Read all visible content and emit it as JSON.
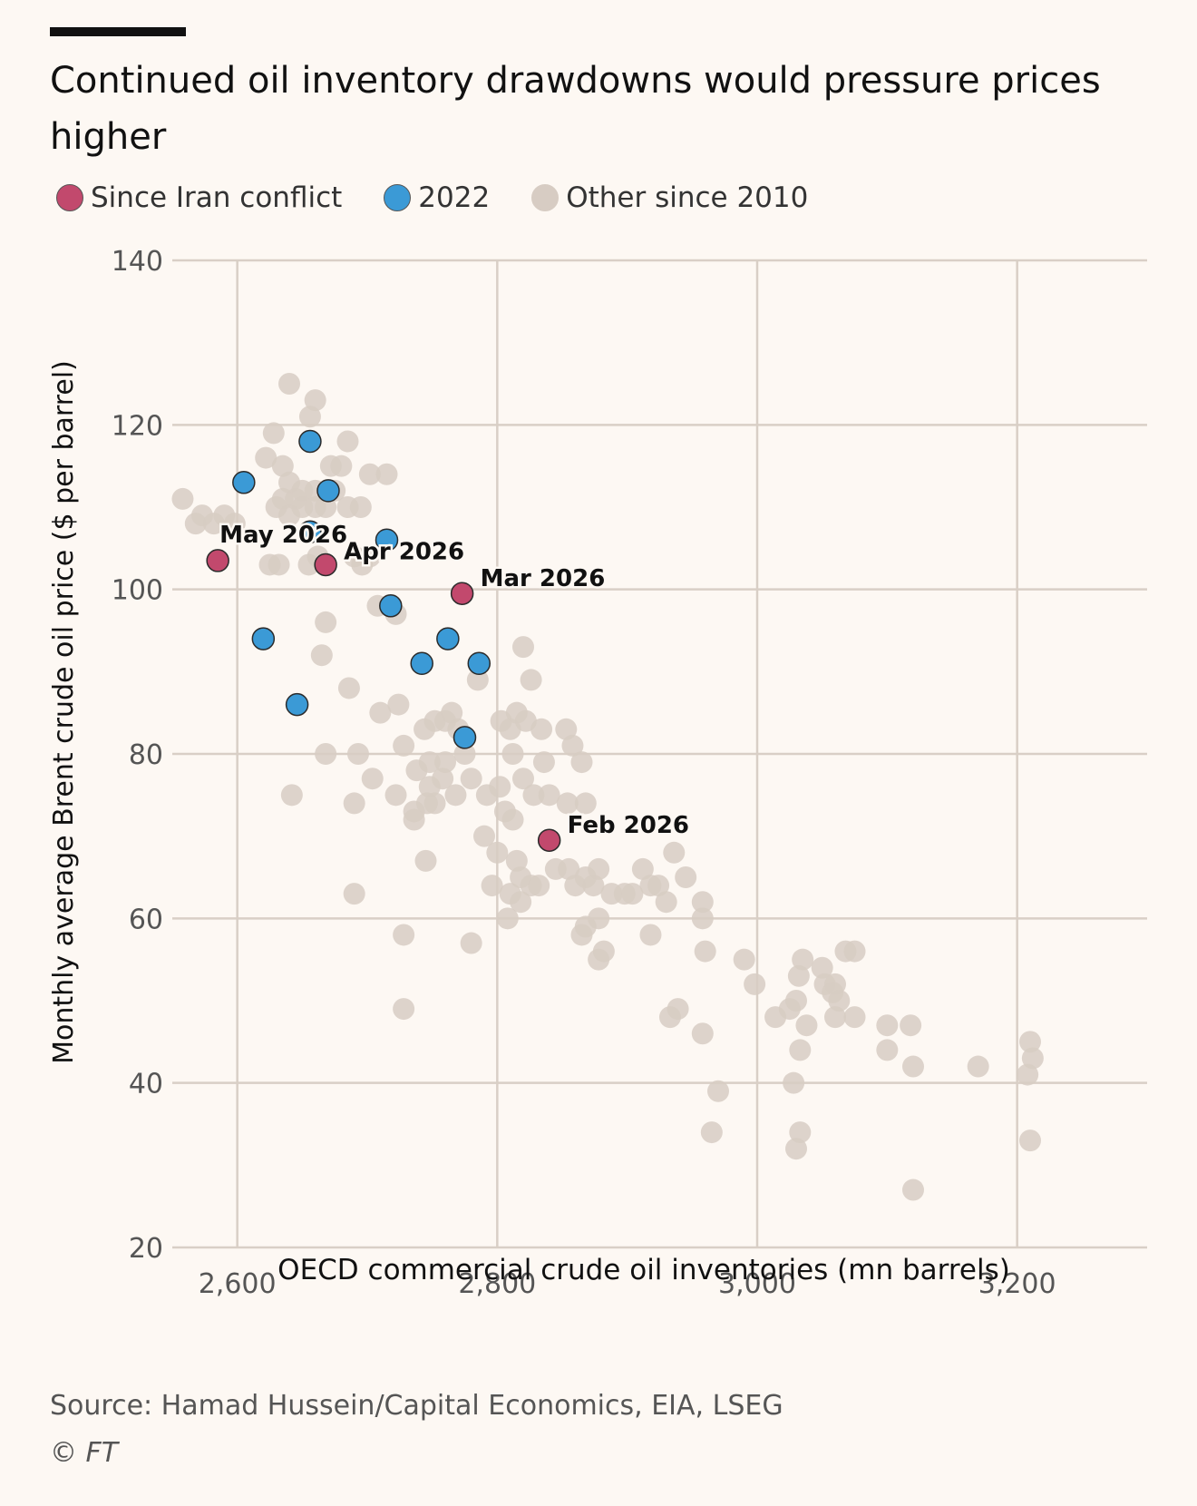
{
  "title": "Continued oil inventory drawdowns would pressure prices higher",
  "source": "Source: Hamad Hussein/Capital Economics, EIA, LSEG",
  "copyright": "© FT",
  "colors": {
    "iran": "#c2496d",
    "y2022": "#3b9ad6",
    "other": "#d7ccc3",
    "grid": "#d9cfc6",
    "background": "#fdf8f3"
  },
  "chart_data": {
    "type": "scatter",
    "title": "Continued oil inventory drawdowns would pressure prices higher",
    "xlabel": "OECD commercial crude oil inventories (mn barrels)",
    "ylabel": "Monthly average Brent crude oil price ($ per barrel)",
    "xlim": [
      2550,
      3300
    ],
    "ylim": [
      20,
      140
    ],
    "xticks": [
      2600,
      2800,
      3000,
      3200
    ],
    "xtick_labels": [
      "2,600",
      "2,800",
      "3,000",
      "3,200"
    ],
    "yticks": [
      20,
      40,
      60,
      80,
      100,
      120,
      140
    ],
    "ytick_labels": [
      "20",
      "40",
      "60",
      "80",
      "100",
      "120",
      "140"
    ],
    "grid": true,
    "legend_position": "top-left",
    "series": [
      {
        "name": "Other since 2010",
        "color": "#d7ccc3",
        "points": [
          [
            2558,
            111
          ],
          [
            2568,
            108
          ],
          [
            2573,
            109
          ],
          [
            2582,
            108
          ],
          [
            2590,
            109
          ],
          [
            2598,
            108
          ],
          [
            2640,
            125
          ],
          [
            2660,
            123
          ],
          [
            2656,
            121
          ],
          [
            2628,
            119
          ],
          [
            2685,
            118
          ],
          [
            2622,
            116
          ],
          [
            2635,
            115
          ],
          [
            2672,
            115
          ],
          [
            2680,
            115
          ],
          [
            2702,
            114
          ],
          [
            2715,
            114
          ],
          [
            2640,
            113
          ],
          [
            2650,
            112
          ],
          [
            2660,
            112
          ],
          [
            2675,
            112
          ],
          [
            2635,
            111
          ],
          [
            2645,
            111
          ],
          [
            2660,
            110
          ],
          [
            2668,
            110
          ],
          [
            2685,
            110
          ],
          [
            2630,
            110
          ],
          [
            2650,
            110
          ],
          [
            2695,
            110
          ],
          [
            2640,
            109
          ],
          [
            2625,
            103
          ],
          [
            2632,
            103
          ],
          [
            2655,
            103
          ],
          [
            2662,
            104
          ],
          [
            2690,
            104
          ],
          [
            2696,
            103
          ],
          [
            2702,
            104
          ],
          [
            2708,
            98
          ],
          [
            2722,
            97
          ],
          [
            2668,
            96
          ],
          [
            2665,
            92
          ],
          [
            2785,
            89
          ],
          [
            2820,
            93
          ],
          [
            2826,
            89
          ],
          [
            2686,
            88
          ],
          [
            2710,
            85
          ],
          [
            2724,
            86
          ],
          [
            2744,
            83
          ],
          [
            2752,
            84
          ],
          [
            2760,
            84
          ],
          [
            2765,
            85
          ],
          [
            2770,
            83
          ],
          [
            2803,
            84
          ],
          [
            2815,
            85
          ],
          [
            2822,
            84
          ],
          [
            2810,
            83
          ],
          [
            2834,
            83
          ],
          [
            2853,
            83
          ],
          [
            2668,
            80
          ],
          [
            2693,
            80
          ],
          [
            2728,
            81
          ],
          [
            2738,
            78
          ],
          [
            2748,
            79
          ],
          [
            2760,
            79
          ],
          [
            2775,
            80
          ],
          [
            2812,
            80
          ],
          [
            2836,
            79
          ],
          [
            2858,
            81
          ],
          [
            2865,
            79
          ],
          [
            2642,
            75
          ],
          [
            2690,
            74
          ],
          [
            2704,
            77
          ],
          [
            2722,
            75
          ],
          [
            2736,
            73
          ],
          [
            2748,
            76
          ],
          [
            2752,
            74
          ],
          [
            2758,
            77
          ],
          [
            2768,
            75
          ],
          [
            2780,
            77
          ],
          [
            2792,
            75
          ],
          [
            2802,
            76
          ],
          [
            2806,
            73
          ],
          [
            2820,
            77
          ],
          [
            2828,
            75
          ],
          [
            2840,
            75
          ],
          [
            2854,
            74
          ],
          [
            2868,
            74
          ],
          [
            2736,
            72
          ],
          [
            2746,
            74
          ],
          [
            2790,
            70
          ],
          [
            2812,
            72
          ],
          [
            2815,
            67
          ],
          [
            2800,
            68
          ],
          [
            2745,
            67
          ],
          [
            2796,
            64
          ],
          [
            2810,
            63
          ],
          [
            2818,
            65
          ],
          [
            2826,
            64
          ],
          [
            2832,
            64
          ],
          [
            2845,
            66
          ],
          [
            2855,
            66
          ],
          [
            2860,
            64
          ],
          [
            2868,
            65
          ],
          [
            2874,
            64
          ],
          [
            2878,
            66
          ],
          [
            2888,
            63
          ],
          [
            2898,
            63
          ],
          [
            2904,
            63
          ],
          [
            2912,
            66
          ],
          [
            2918,
            64
          ],
          [
            2924,
            64
          ],
          [
            2930,
            62
          ],
          [
            2936,
            68
          ],
          [
            2945,
            65
          ],
          [
            2958,
            62
          ],
          [
            2818,
            62
          ],
          [
            2808,
            60
          ],
          [
            2865,
            58
          ],
          [
            2878,
            60
          ],
          [
            2868,
            59
          ],
          [
            2882,
            56
          ],
          [
            2878,
            55
          ],
          [
            2918,
            58
          ],
          [
            2958,
            60
          ],
          [
            2960,
            56
          ],
          [
            2990,
            55
          ],
          [
            2998,
            52
          ],
          [
            2780,
            57
          ],
          [
            2728,
            58
          ],
          [
            2690,
            63
          ],
          [
            2728,
            49
          ],
          [
            2933,
            48
          ],
          [
            2939,
            49
          ],
          [
            2958,
            46
          ],
          [
            3014,
            48
          ],
          [
            3025,
            49
          ],
          [
            3030,
            50
          ],
          [
            3032,
            53
          ],
          [
            3035,
            55
          ],
          [
            3050,
            54
          ],
          [
            3052,
            52
          ],
          [
            3058,
            51
          ],
          [
            3060,
            52
          ],
          [
            3063,
            50
          ],
          [
            3060,
            48
          ],
          [
            3068,
            56
          ],
          [
            3075,
            56
          ],
          [
            3075,
            48
          ],
          [
            3038,
            47
          ],
          [
            3028,
            40
          ],
          [
            3033,
            44
          ],
          [
            3100,
            47
          ],
          [
            3118,
            47
          ],
          [
            3100,
            44
          ],
          [
            3120,
            42
          ],
          [
            3170,
            42
          ],
          [
            3210,
            45
          ],
          [
            3212,
            43
          ],
          [
            3208,
            41
          ],
          [
            3210,
            33
          ],
          [
            2970,
            39
          ],
          [
            2965,
            34
          ],
          [
            3033,
            34
          ],
          [
            3030,
            32
          ],
          [
            3120,
            27
          ]
        ]
      },
      {
        "name": "2022",
        "color": "#3b9ad6",
        "points": [
          [
            2605,
            113
          ],
          [
            2656,
            118
          ],
          [
            2670,
            112
          ],
          [
            2656,
            107
          ],
          [
            2715,
            106
          ],
          [
            2718,
            98
          ],
          [
            2620,
            94
          ],
          [
            2762,
            94
          ],
          [
            2742,
            91
          ],
          [
            2786,
            91
          ],
          [
            2646,
            86
          ],
          [
            2775,
            82
          ]
        ]
      },
      {
        "name": "Since Iran conflict",
        "color": "#c2496d",
        "points": [
          [
            2840,
            69.5
          ],
          [
            2773,
            99.5
          ],
          [
            2668,
            103
          ],
          [
            2585,
            103.5
          ]
        ],
        "labels": [
          "Feb 2026",
          "Mar 2026",
          "Apr 2026",
          "May 2026"
        ]
      }
    ],
    "legend": [
      {
        "label": "Since Iran conflict",
        "color": "#c2496d"
      },
      {
        "label": "2022",
        "color": "#3b9ad6"
      },
      {
        "label": "Other since 2010",
        "color": "#d7ccc3"
      }
    ]
  }
}
